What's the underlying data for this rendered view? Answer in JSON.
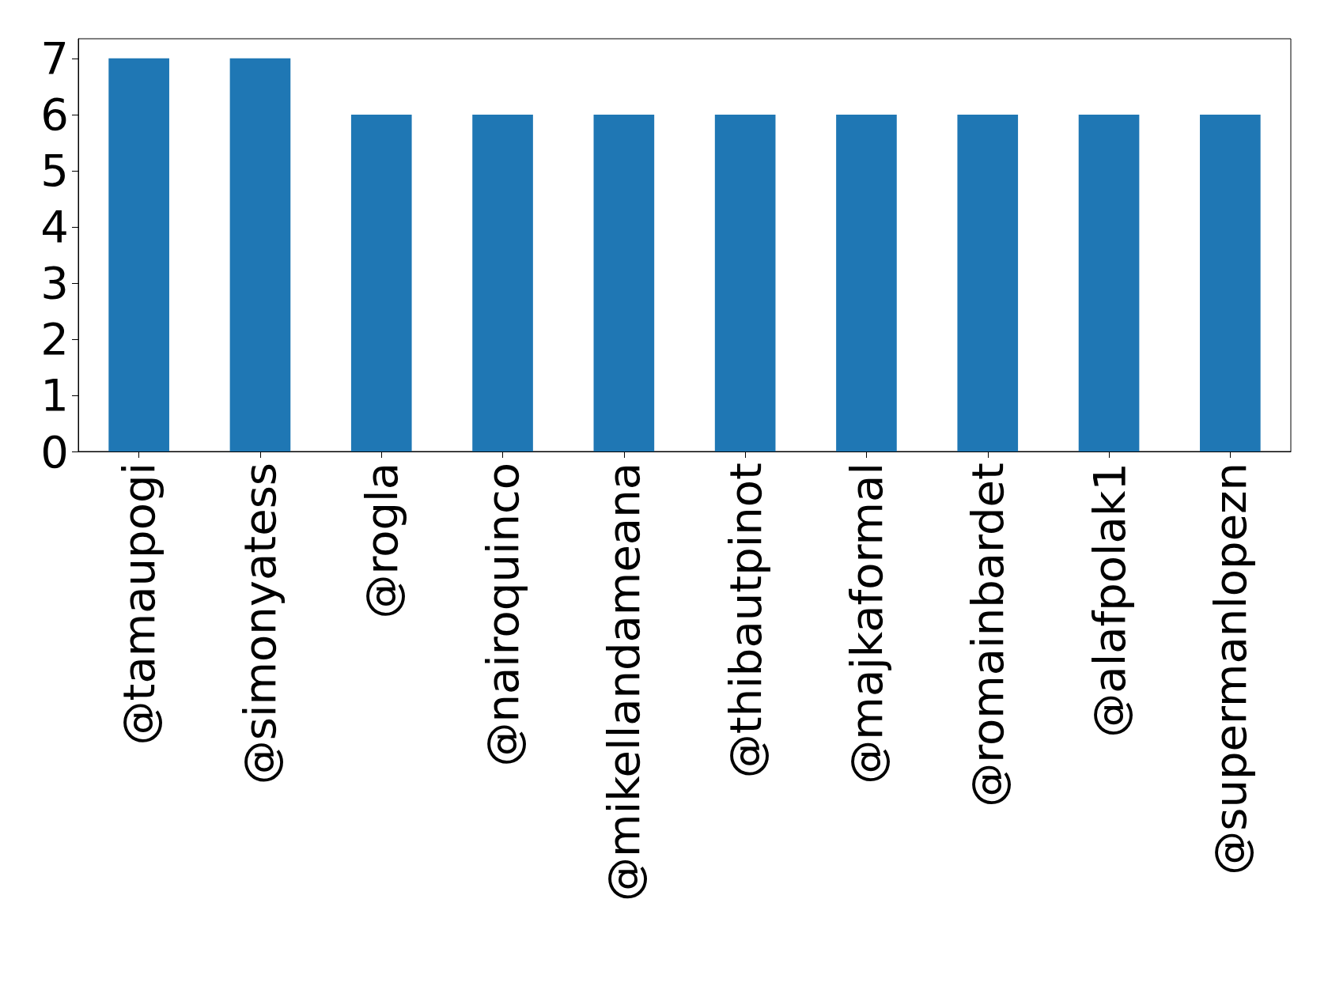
{
  "chart_data": {
    "type": "bar",
    "categories": [
      "@tamaupogi",
      "@simonyatess",
      "@rogla",
      "@nairoquinco",
      "@mikellandameana",
      "@thibautpinot",
      "@majkaformal",
      "@romainbardet",
      "@alafpolak1",
      "@supermanlopezn"
    ],
    "values": [
      7,
      7,
      6,
      6,
      6,
      6,
      6,
      6,
      6,
      6
    ],
    "color": "#1f77b4",
    "ylim": [
      0,
      7.35
    ],
    "yticks": [
      0,
      1,
      2,
      3,
      4,
      5,
      6,
      7
    ],
    "grid": false
  }
}
